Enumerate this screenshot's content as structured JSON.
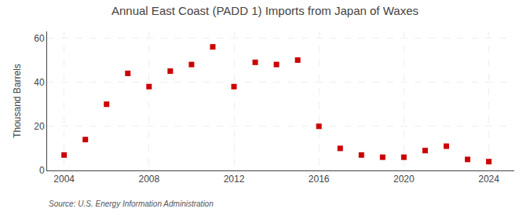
{
  "chart_data": {
    "type": "scatter",
    "title": "Annual East Coast (PADD 1) Imports from Japan of Waxes",
    "ylabel": "Thousand Barrels",
    "annotation": "Source: U.S. Energy Information Administration",
    "x": [
      2004,
      2005,
      2006,
      2007,
      2008,
      2009,
      2010,
      2011,
      2012,
      2013,
      2014,
      2015,
      2016,
      2017,
      2018,
      2019,
      2020,
      2021,
      2022,
      2023,
      2024
    ],
    "values": [
      7,
      14,
      30,
      44,
      38,
      45,
      48,
      56,
      38,
      49,
      48,
      50,
      20,
      10,
      7,
      6,
      6,
      9,
      11,
      5,
      4
    ],
    "color": "#cc0000",
    "marker": "square",
    "xlim": [
      2003.2,
      2025.2
    ],
    "ylim": [
      0,
      63
    ],
    "xticks": [
      2004,
      2008,
      2012,
      2016,
      2020,
      2024
    ],
    "yticks": [
      0,
      20,
      40,
      60
    ],
    "grid": true
  }
}
